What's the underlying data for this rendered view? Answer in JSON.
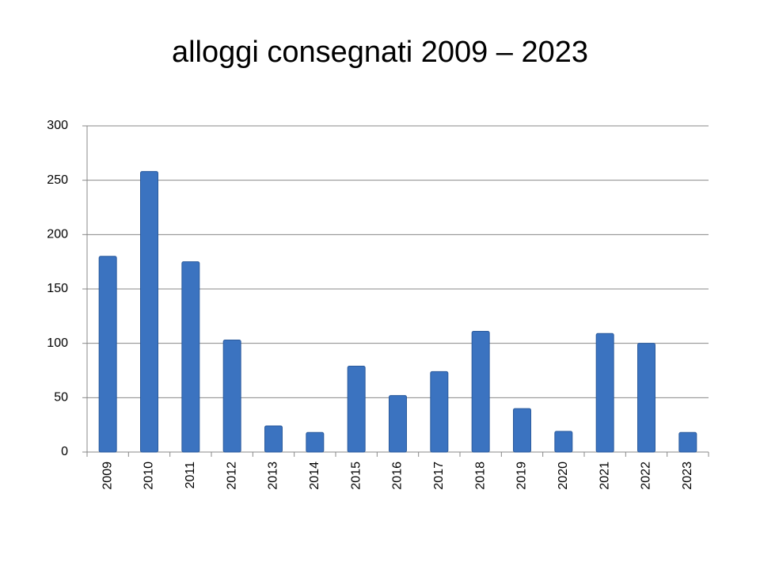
{
  "chart_data": {
    "type": "bar",
    "title": "alloggi consegnati 2009 – 2023",
    "categories": [
      "2009",
      "2010",
      "2011",
      "2012",
      "2013",
      "2014",
      "2015",
      "2016",
      "2017",
      "2018",
      "2019",
      "2020",
      "2021",
      "2022",
      "2023"
    ],
    "values": [
      180,
      258,
      175,
      103,
      24,
      18,
      79,
      52,
      74,
      111,
      40,
      19,
      109,
      100,
      18
    ],
    "color": "#3b73c0",
    "ylim": [
      0,
      300
    ],
    "yticks": [
      0,
      50,
      100,
      150,
      200,
      250,
      300
    ],
    "grid": true
  }
}
